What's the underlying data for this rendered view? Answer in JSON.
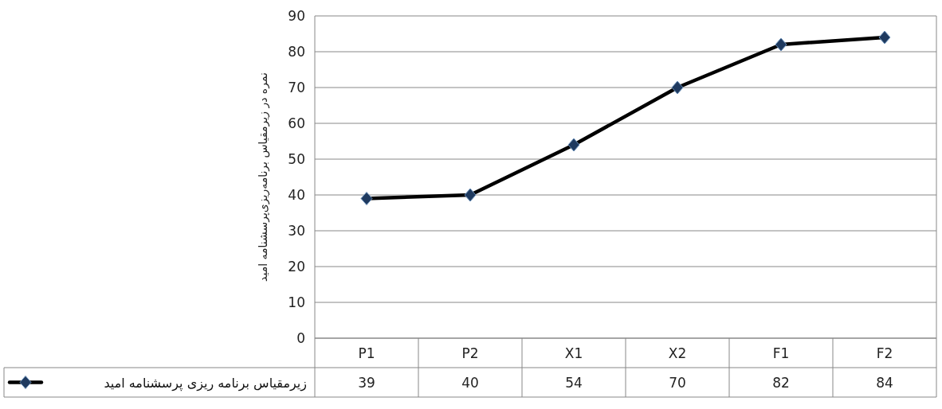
{
  "chart_data": {
    "type": "line",
    "ylabel": "نمره در زیرمقیاس برنامه‌ریزی‌پرسشنامه امید",
    "categories": [
      "P1",
      "P2",
      "X1",
      "X2",
      "F1",
      "F2"
    ],
    "series": [
      {
        "name": "زیرمقیاس برنامه ریزی پرسشنامه امید",
        "color": "#000000",
        "values": [
          39,
          40,
          54,
          70,
          82,
          84
        ]
      }
    ],
    "ylim": [
      0,
      90
    ],
    "yticks": [
      0,
      10,
      20,
      30,
      40,
      50,
      60,
      70,
      80,
      90
    ],
    "grid": "y",
    "marker": "diamond",
    "line_style": "solid",
    "data_labels": true,
    "legend": "bottom left"
  }
}
